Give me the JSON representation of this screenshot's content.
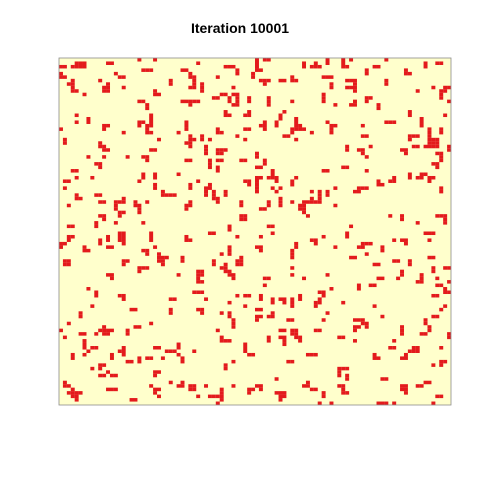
{
  "chart_data": {
    "type": "heatmap",
    "title": "Iteration 10001",
    "xlabel": "",
    "ylabel": "",
    "grid_size": 100,
    "grid": false,
    "colors": {
      "empty": "#FFFFCC",
      "filled": "#E31A1C",
      "frame": "#8C8C8C"
    },
    "cell_states": [
      "empty",
      "filled"
    ],
    "filled_fraction": 0.1,
    "random_seed": 10001
  }
}
